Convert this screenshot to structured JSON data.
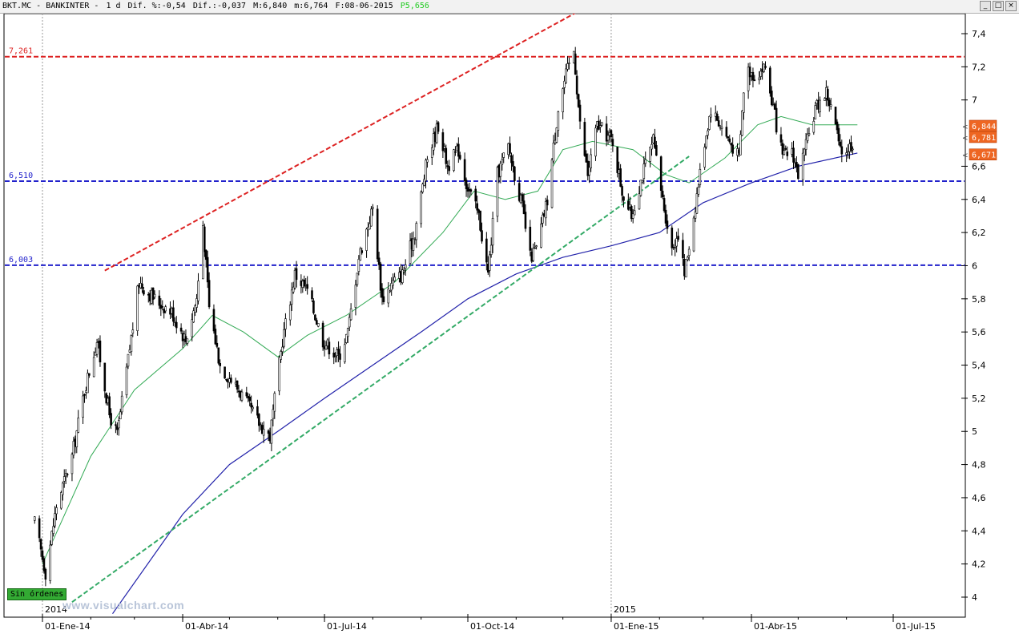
{
  "header": {
    "symbol": "BKT.MC",
    "name": "BANKINTER",
    "period": "1 d",
    "dif_pct_label": "Dif. %:",
    "dif_pct": "-0,54",
    "dif_label": "Dif.:",
    "dif": "-0,037",
    "max_label": "M:",
    "max": "6,840",
    "min_label": "m:",
    "min": "6,764",
    "date_label": "F:",
    "date": "08-06-2015",
    "p_label": "P",
    "p_value": "5,656"
  },
  "window_buttons": [
    "_",
    "□",
    "×"
  ],
  "badge": "Sin órdenes",
  "watermark": "www.visualchart.com",
  "colors": {
    "candles": "#000000",
    "ma_short": "#33aa55",
    "ma_long": "#2222aa",
    "resistance": "#dd2222",
    "support": "#2222cc",
    "uptrend": "#33aa66",
    "price_tag": "#ee6622",
    "badge": "#33aa33"
  },
  "chart_data": {
    "type": "candlestick",
    "y_axis": {
      "min": 3.9,
      "max": 7.55,
      "ticks": [
        4,
        4.2,
        4.4,
        4.6,
        4.8,
        5,
        5.2,
        5.4,
        5.6,
        5.8,
        6,
        6.2,
        6.4,
        6.6,
        7,
        7.2,
        7.4
      ],
      "tick_labels": [
        "4",
        "4,2",
        "4,4",
        "4,6",
        "4,8",
        "5",
        "5,2",
        "5,4",
        "5,6",
        "5,8",
        "6",
        "6,2",
        "6,4",
        "6,6",
        "7",
        "7,2",
        "7,4"
      ]
    },
    "x_axis": {
      "start": "2014-01-01",
      "end": "2015-07-15",
      "tick_labels": [
        {
          "date": "2014-01-01",
          "label": "01-Ene-14"
        },
        {
          "date": "2014-04-01",
          "label": "01-Abr-14"
        },
        {
          "date": "2014-07-01",
          "label": "01-Jul-14"
        },
        {
          "date": "2014-10-01",
          "label": "01-Oct-14"
        },
        {
          "date": "2015-01-01",
          "label": "01-Ene-15"
        },
        {
          "date": "2015-04-01",
          "label": "01-Abr-15"
        },
        {
          "date": "2015-07-01",
          "label": "01-Jul-15"
        }
      ],
      "year_labels": [
        {
          "date": "2014-01-01",
          "label": "2014"
        },
        {
          "date": "2015-01-01",
          "label": "2015"
        }
      ]
    },
    "horizontal_lines": [
      {
        "value": 7.261,
        "label": "7,261",
        "color": "#dd2222"
      },
      {
        "value": 6.51,
        "label": "6,510",
        "color": "#2222cc"
      },
      {
        "value": 6.003,
        "label": "6,003",
        "color": "#2222cc"
      }
    ],
    "trend_lines": [
      {
        "name": "resistance",
        "color": "#dd2222",
        "from": {
          "date": "2014-02-10",
          "value": 5.97
        },
        "to": {
          "date": "2014-12-10",
          "value": 7.53
        }
      },
      {
        "name": "support",
        "color": "#33aa66",
        "from": {
          "date": "2014-01-20",
          "value": 3.97
        },
        "to": {
          "date": "2015-02-20",
          "value": 6.66
        }
      }
    ],
    "price_tags": [
      {
        "value": 6.844,
        "label": "6,844"
      },
      {
        "value": 6.781,
        "label": "6,781"
      },
      {
        "value": 6.671,
        "label": "6,671"
      }
    ],
    "anchors": [
      [
        "2013-12-27",
        4.45
      ],
      [
        "2014-01-03",
        4.15
      ],
      [
        "2014-01-10",
        4.55
      ],
      [
        "2014-01-20",
        4.85
      ],
      [
        "2014-01-28",
        5.25
      ],
      [
        "2014-02-05",
        5.55
      ],
      [
        "2014-02-13",
        5.1
      ],
      [
        "2014-02-18",
        4.98
      ],
      [
        "2014-02-26",
        5.5
      ],
      [
        "2014-03-04",
        5.9
      ],
      [
        "2014-03-14",
        5.8
      ],
      [
        "2014-03-25",
        5.72
      ],
      [
        "2014-04-03",
        5.55
      ],
      [
        "2014-04-10",
        5.8
      ],
      [
        "2014-04-14",
        6.25
      ],
      [
        "2014-04-18",
        5.75
      ],
      [
        "2014-04-25",
        5.4
      ],
      [
        "2014-05-07",
        5.25
      ],
      [
        "2014-05-20",
        5.05
      ],
      [
        "2014-05-27",
        4.97
      ],
      [
        "2014-06-04",
        5.55
      ],
      [
        "2014-06-12",
        5.95
      ],
      [
        "2014-06-20",
        5.85
      ],
      [
        "2014-06-30",
        5.55
      ],
      [
        "2014-07-10",
        5.45
      ],
      [
        "2014-07-16",
        5.6
      ],
      [
        "2014-07-23",
        6.05
      ],
      [
        "2014-08-01",
        6.35
      ],
      [
        "2014-08-07",
        5.8
      ],
      [
        "2014-08-14",
        5.9
      ],
      [
        "2014-08-20",
        5.95
      ],
      [
        "2014-08-28",
        6.2
      ],
      [
        "2014-09-05",
        6.65
      ],
      [
        "2014-09-12",
        6.85
      ],
      [
        "2014-09-18",
        6.6
      ],
      [
        "2014-09-25",
        6.7
      ],
      [
        "2014-09-30",
        6.5
      ],
      [
        "2014-10-08",
        6.3
      ],
      [
        "2014-10-14",
        5.95
      ],
      [
        "2014-10-20",
        6.55
      ],
      [
        "2014-10-27",
        6.72
      ],
      [
        "2014-11-05",
        6.35
      ],
      [
        "2014-11-10",
        6.05
      ],
      [
        "2014-11-14",
        6.1
      ],
      [
        "2014-11-21",
        6.4
      ],
      [
        "2014-11-28",
        6.95
      ],
      [
        "2014-12-03",
        7.15
      ],
      [
        "2014-12-08",
        7.3
      ],
      [
        "2014-12-12",
        6.85
      ],
      [
        "2014-12-17",
        6.55
      ],
      [
        "2014-12-23",
        6.85
      ],
      [
        "2015-01-02",
        6.75
      ],
      [
        "2015-01-08",
        6.45
      ],
      [
        "2015-01-14",
        6.3
      ],
      [
        "2015-01-21",
        6.55
      ],
      [
        "2015-01-28",
        6.75
      ],
      [
        "2015-02-03",
        6.4
      ],
      [
        "2015-02-09",
        6.1
      ],
      [
        "2015-02-13",
        6.2
      ],
      [
        "2015-02-17",
        5.95
      ],
      [
        "2015-02-23",
        6.3
      ],
      [
        "2015-03-02",
        6.75
      ],
      [
        "2015-03-06",
        6.95
      ],
      [
        "2015-03-12",
        6.85
      ],
      [
        "2015-03-18",
        6.75
      ],
      [
        "2015-03-24",
        6.65
      ],
      [
        "2015-03-28",
        7.2
      ],
      [
        "2015-04-03",
        7.15
      ],
      [
        "2015-04-10",
        7.2
      ],
      [
        "2015-04-16",
        6.9
      ],
      [
        "2015-04-21",
        6.65
      ],
      [
        "2015-04-27",
        6.7
      ],
      [
        "2015-05-01",
        6.55
      ],
      [
        "2015-05-07",
        6.75
      ],
      [
        "2015-05-12",
        6.95
      ],
      [
        "2015-05-19",
        7.05
      ],
      [
        "2015-05-25",
        6.85
      ],
      [
        "2015-05-28",
        6.68
      ],
      [
        "2015-06-03",
        6.72
      ],
      [
        "2015-06-08",
        6.78
      ]
    ],
    "ma_short": [
      [
        "2014-01-01",
        4.2
      ],
      [
        "2014-02-01",
        4.85
      ],
      [
        "2014-03-01",
        5.25
      ],
      [
        "2014-04-01",
        5.5
      ],
      [
        "2014-04-20",
        5.7
      ],
      [
        "2014-05-10",
        5.6
      ],
      [
        "2014-06-01",
        5.45
      ],
      [
        "2014-06-20",
        5.58
      ],
      [
        "2014-07-15",
        5.7
      ],
      [
        "2014-08-15",
        5.9
      ],
      [
        "2014-09-15",
        6.2
      ],
      [
        "2014-10-05",
        6.45
      ],
      [
        "2014-10-25",
        6.4
      ],
      [
        "2014-11-15",
        6.45
      ],
      [
        "2014-12-01",
        6.7
      ],
      [
        "2014-12-20",
        6.75
      ],
      [
        "2015-01-15",
        6.7
      ],
      [
        "2015-02-05",
        6.55
      ],
      [
        "2015-02-20",
        6.5
      ],
      [
        "2015-03-15",
        6.65
      ],
      [
        "2015-04-05",
        6.85
      ],
      [
        "2015-04-20",
        6.9
      ],
      [
        "2015-05-10",
        6.85
      ],
      [
        "2015-06-08",
        6.85
      ]
    ],
    "ma_long": [
      [
        "2014-02-15",
        3.9
      ],
      [
        "2014-04-01",
        4.5
      ],
      [
        "2014-05-01",
        4.8
      ],
      [
        "2014-06-01",
        5.0
      ],
      [
        "2014-07-01",
        5.2
      ],
      [
        "2014-08-01",
        5.4
      ],
      [
        "2014-09-01",
        5.6
      ],
      [
        "2014-10-01",
        5.8
      ],
      [
        "2014-11-01",
        5.95
      ],
      [
        "2014-12-01",
        6.05
      ],
      [
        "2015-01-01",
        6.12
      ],
      [
        "2015-02-01",
        6.2
      ],
      [
        "2015-03-01",
        6.38
      ],
      [
        "2015-04-01",
        6.5
      ],
      [
        "2015-05-01",
        6.6
      ],
      [
        "2015-06-08",
        6.68
      ]
    ]
  }
}
